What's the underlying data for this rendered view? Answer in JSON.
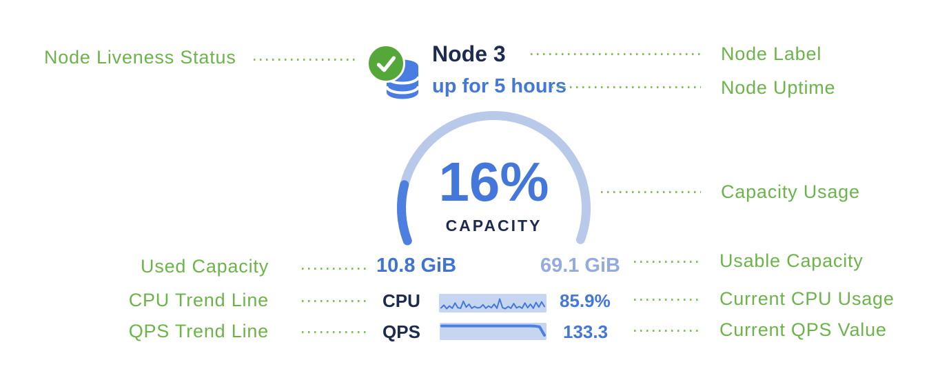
{
  "colors": {
    "green": "#6cb44a",
    "dotGreen": "#82c25c",
    "circleGreen": "#56a739",
    "dbBlue": "#4a7de2",
    "navy": "#1d2b50",
    "blue": "#4377d9",
    "lightArc": "#b9c9ea",
    "darkArc": "#4c7fe0",
    "sparkBg": "#c6d5f0",
    "usedBlue": "#4173d2",
    "usableBlue": "#93abde"
  },
  "annotations": {
    "node_liveness_status": "Node Liveness Status",
    "node_label": "Node Label",
    "node_uptime": "Node Uptime",
    "capacity_usage": "Capacity Usage",
    "used_capacity": "Used Capacity",
    "usable_capacity": "Usable Capacity",
    "cpu_trend_line": "CPU Trend Line",
    "current_cpu_usage": "Current CPU Usage",
    "qps_trend_line": "QPS Trend Line",
    "current_qps_value": "Current QPS Value"
  },
  "node": {
    "label": "Node 3",
    "uptime": "up for 5 hours",
    "liveness": "healthy",
    "icons": {
      "liveness": "check-circle-icon",
      "node": "database-icon"
    },
    "capacity": {
      "percent": "16%",
      "percent_value": 16,
      "caption": "CAPACITY",
      "used": "10.8 GiB",
      "usable": "69.1 GiB"
    },
    "cpu": {
      "label": "CPU",
      "value": "85.9%",
      "trend": [
        0.18,
        0.42,
        0.12,
        0.35,
        0.15,
        0.6,
        0.2,
        0.15,
        0.75,
        0.25,
        0.5,
        0.15,
        0.3,
        0.18,
        0.22,
        0.45,
        0.15,
        0.35,
        0.2,
        0.5,
        0.15,
        0.95,
        0.2,
        0.12,
        0.3,
        0.15,
        0.55,
        0.18,
        0.3,
        0.15,
        0.6,
        0.2,
        0.5,
        0.15,
        0.65,
        0.25,
        0.7,
        0.3
      ]
    },
    "qps": {
      "label": "QPS",
      "value": "133.3",
      "trend": [
        0.97,
        0.97,
        0.97,
        0.97,
        0.97,
        0.97,
        0.97,
        0.97,
        0.97,
        0.97,
        0.97,
        0.97,
        0.97,
        0.97,
        0.97,
        0.97,
        0.97,
        0.97,
        0.97,
        0.96,
        0.9,
        0.2
      ]
    }
  }
}
